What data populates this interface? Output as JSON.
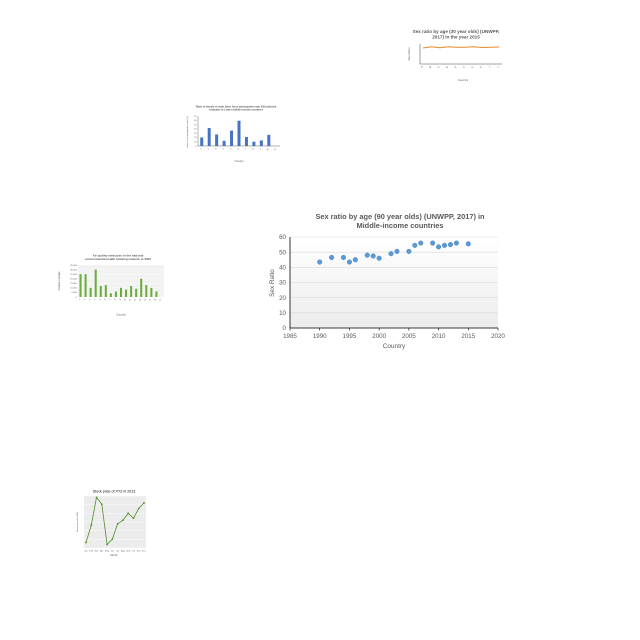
{
  "colors": {
    "orange_line": "#e8892a",
    "blue_bar": "#4472c4",
    "green_bar": "#6aab3a",
    "green_line": "#4f8f2a",
    "scatter_point": "#5b9bd5",
    "grid": "#d9d9d9",
    "axis": "#404040",
    "text": "#595959"
  },
  "chart_data": [
    {
      "type": "line",
      "title": "Sex ratio by age (30 year olds) (UNWPP, 2017) in the year 2015",
      "xlabel": "Country",
      "ylabel": "Sex Ratio",
      "x": [
        "A",
        "B",
        "C",
        "D",
        "E",
        "F",
        "G",
        "H",
        "I",
        "J"
      ],
      "values": [
        96,
        104,
        97,
        103,
        100,
        101,
        104,
        99,
        100,
        102
      ],
      "ylim": [
        0,
        120
      ],
      "grid": false
    },
    {
      "type": "bar",
      "title": "Ratio of female to male labor force participation rate (%) (national estimate) in Lower middle income countries",
      "xlabel": "Country",
      "ylabel": "Labor force participation rate (%)",
      "categories": [
        "1",
        "2",
        "3",
        "4",
        "5",
        "6",
        "7",
        "8",
        "9",
        "10",
        "11"
      ],
      "values": [
        20,
        42,
        27,
        12,
        36,
        59,
        21,
        10,
        13,
        26,
        0
      ],
      "ylim": [
        0,
        70
      ],
      "grid": false
    },
    {
      "type": "bar",
      "title": "Air quality measures in the national environmental health tracking network in 2020",
      "xlabel": "Country",
      "ylabel": "Number of people",
      "categories": [
        "1",
        "2",
        "3",
        "4",
        "5",
        "6",
        "7",
        "8",
        "9",
        "10",
        "11",
        "12",
        "13",
        "14",
        "15",
        "16",
        "17"
      ],
      "values": [
        25000,
        25000,
        10000,
        30000,
        12000,
        13000,
        4000,
        6000,
        10000,
        8000,
        12000,
        9000,
        20000,
        13000,
        10000,
        6000,
        0
      ],
      "ylim": [
        0,
        35000
      ],
      "grid": true
    },
    {
      "type": "scatter",
      "title": "Sex ratio by age (90 year olds) (UNWPP, 2017) in Middle-income countries",
      "xlabel": "Country",
      "ylabel": "Sex Ratio",
      "xlim": [
        1985,
        2020
      ],
      "ylim": [
        0,
        60
      ],
      "x_ticks": [
        1985,
        1990,
        1995,
        2000,
        2005,
        2010,
        2015,
        2020
      ],
      "y_ticks": [
        0,
        10,
        20,
        30,
        40,
        50,
        60
      ],
      "points": [
        {
          "x": 1990,
          "y": 43.5
        },
        {
          "x": 1992,
          "y": 46.5
        },
        {
          "x": 1994,
          "y": 46.5
        },
        {
          "x": 1995,
          "y": 43.5
        },
        {
          "x": 1996,
          "y": 45
        },
        {
          "x": 1998,
          "y": 48
        },
        {
          "x": 1999,
          "y": 47.5
        },
        {
          "x": 2000,
          "y": 46
        },
        {
          "x": 2002,
          "y": 49
        },
        {
          "x": 2003,
          "y": 50.5
        },
        {
          "x": 2005,
          "y": 50.5
        },
        {
          "x": 2006,
          "y": 54.5
        },
        {
          "x": 2007,
          "y": 56
        },
        {
          "x": 2009,
          "y": 56
        },
        {
          "x": 2010,
          "y": 53.5
        },
        {
          "x": 2011,
          "y": 54.5
        },
        {
          "x": 2012,
          "y": 55
        },
        {
          "x": 2013,
          "y": 56
        },
        {
          "x": 2015,
          "y": 55.5
        }
      ],
      "grid": true
    },
    {
      "type": "line",
      "title": "Stock price of XYZ in 2013",
      "xlabel": "Month",
      "ylabel": "Stock price (in USD)",
      "categories": [
        "Jan",
        "Feb",
        "Mar",
        "Apr",
        "May",
        "Jun",
        "Jul",
        "Aug",
        "Sep",
        "Oct",
        "Nov",
        "Dec"
      ],
      "values": [
        33,
        58,
        98,
        88,
        30,
        38,
        60,
        65,
        75,
        68,
        82,
        90
      ],
      "ylim": [
        25,
        100
      ],
      "grid": true
    }
  ]
}
